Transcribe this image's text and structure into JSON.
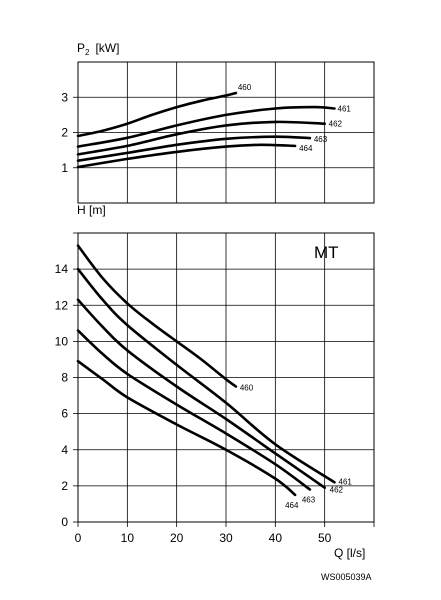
{
  "chart_data": [
    {
      "type": "line",
      "ylabel_main": "P",
      "ylabel_sub": "2",
      "ylabel_unit": "[kW]",
      "xlim": [
        0,
        60
      ],
      "ylim": [
        0,
        4
      ],
      "xticks": [
        0,
        10,
        20,
        30,
        40,
        50,
        60
      ],
      "yticks": [
        1,
        2,
        3
      ],
      "ytick_labels": [
        "1",
        "2",
        "3"
      ],
      "grid": true,
      "series": [
        {
          "name": "460",
          "x": [
            0,
            5,
            10,
            15,
            20,
            25,
            30,
            32
          ],
          "y": [
            1.9,
            2.05,
            2.25,
            2.5,
            2.72,
            2.9,
            3.05,
            3.12
          ]
        },
        {
          "name": "461",
          "x": [
            0,
            10,
            20,
            30,
            40,
            48,
            52
          ],
          "y": [
            1.6,
            1.85,
            2.2,
            2.5,
            2.68,
            2.72,
            2.68
          ]
        },
        {
          "name": "462",
          "x": [
            0,
            10,
            20,
            30,
            40,
            50
          ],
          "y": [
            1.38,
            1.62,
            1.95,
            2.2,
            2.3,
            2.25
          ]
        },
        {
          "name": "463",
          "x": [
            0,
            10,
            20,
            30,
            40,
            47
          ],
          "y": [
            1.2,
            1.42,
            1.65,
            1.82,
            1.88,
            1.84
          ]
        },
        {
          "name": "464",
          "x": [
            0,
            10,
            20,
            30,
            37,
            44
          ],
          "y": [
            1.02,
            1.25,
            1.45,
            1.6,
            1.65,
            1.62
          ]
        }
      ]
    },
    {
      "type": "line",
      "title": "MT",
      "xlabel": "Q [l/s]",
      "ylabel": "H [m]",
      "xlim": [
        0,
        60
      ],
      "ylim": [
        0,
        16
      ],
      "xticks": [
        0,
        10,
        20,
        30,
        40,
        50,
        60
      ],
      "xtick_labels": [
        "0",
        "10",
        "20",
        "30",
        "40",
        "50"
      ],
      "yticks": [
        0,
        2,
        4,
        6,
        8,
        10,
        12,
        14,
        16
      ],
      "ytick_labels": [
        "0",
        "2",
        "4",
        "6",
        "8",
        "10",
        "12",
        "14"
      ],
      "grid": true,
      "series": [
        {
          "name": "460",
          "x": [
            0,
            5,
            10,
            15,
            20,
            25,
            30,
            32
          ],
          "y": [
            15.3,
            13.5,
            12.1,
            11.0,
            10.0,
            9.0,
            7.9,
            7.5
          ]
        },
        {
          "name": "461",
          "x": [
            0,
            5,
            10,
            20,
            30,
            40,
            52
          ],
          "y": [
            14.0,
            12.3,
            10.9,
            8.7,
            6.6,
            4.3,
            2.2
          ]
        },
        {
          "name": "462",
          "x": [
            0,
            5,
            10,
            20,
            30,
            40,
            50
          ],
          "y": [
            12.3,
            10.8,
            9.5,
            7.5,
            5.7,
            3.8,
            1.9
          ]
        },
        {
          "name": "463",
          "x": [
            0,
            5,
            10,
            20,
            30,
            40,
            47
          ],
          "y": [
            10.6,
            9.3,
            8.2,
            6.5,
            4.9,
            3.2,
            1.8
          ]
        },
        {
          "name": "464",
          "x": [
            0,
            5,
            10,
            20,
            30,
            40,
            44
          ],
          "y": [
            8.9,
            7.9,
            6.9,
            5.4,
            4.0,
            2.4,
            1.5
          ]
        }
      ]
    }
  ],
  "image_code": "WS005039A"
}
